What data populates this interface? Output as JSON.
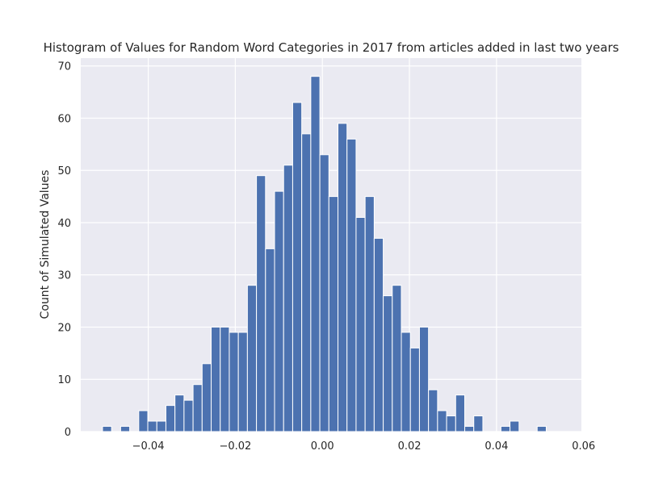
{
  "chart_data": {
    "type": "bar",
    "title": "Histogram of Values for Random Word Categories in 2017 from articles added in last two years",
    "xlabel": "",
    "ylabel": "Count of Simulated Values",
    "xlim": [
      -0.0555,
      0.0595
    ],
    "ylim": [
      0,
      71.5
    ],
    "grid": true,
    "x_ticks": [
      -0.04,
      -0.02,
      0.0,
      0.02,
      0.04,
      0.06
    ],
    "x_tick_labels": [
      "−0.04",
      "−0.02",
      "0.00",
      "0.02",
      "0.04",
      "0.06"
    ],
    "y_ticks": [
      0,
      10,
      20,
      30,
      40,
      50,
      60,
      70
    ],
    "y_tick_labels": [
      "0",
      "10",
      "20",
      "30",
      "40",
      "50",
      "60",
      "70"
    ],
    "bin_start": -0.0505,
    "bin_width": 0.00208,
    "values": [
      1,
      0,
      1,
      0,
      4,
      2,
      2,
      5,
      7,
      6,
      9,
      13,
      20,
      20,
      19,
      19,
      28,
      49,
      35,
      46,
      51,
      63,
      57,
      68,
      53,
      45,
      59,
      56,
      41,
      45,
      37,
      26,
      28,
      19,
      16,
      20,
      8,
      4,
      3,
      7,
      1,
      3,
      0,
      0,
      1,
      2,
      0,
      0,
      1
    ],
    "colors": {
      "bar": "#4c72b0",
      "plot_bg": "#eaeaf2",
      "grid": "#ffffff"
    }
  }
}
